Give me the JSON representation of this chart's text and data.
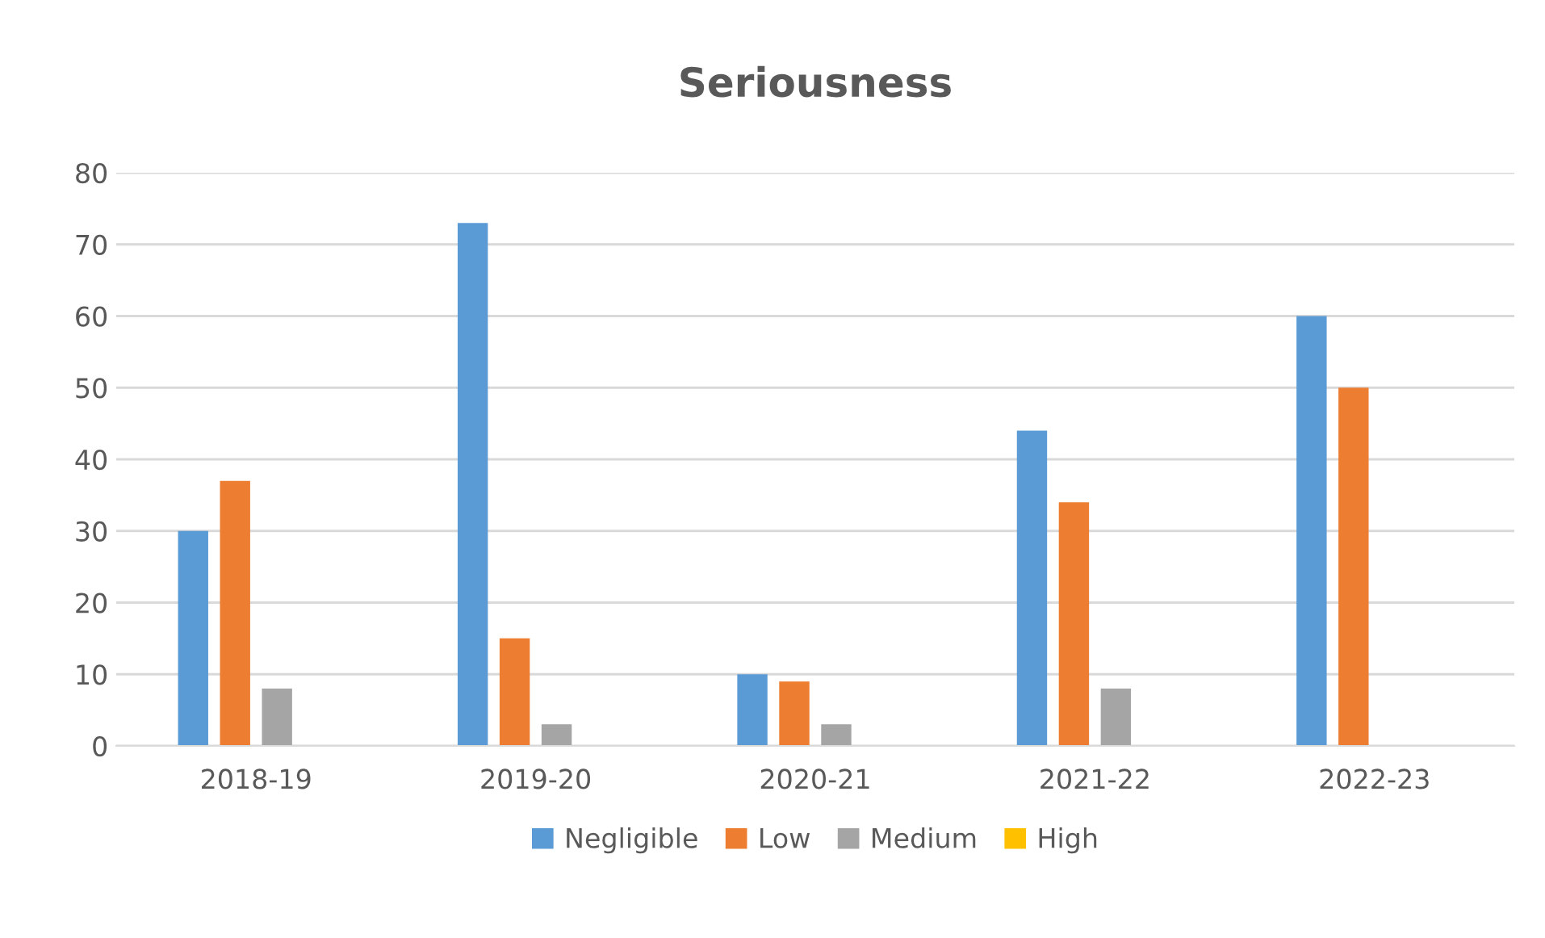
{
  "chart_data": {
    "type": "bar",
    "title": "Seriousness",
    "categories": [
      "2018-19",
      "2019-20",
      "2020-21",
      "2021-22",
      "2022-23"
    ],
    "series": [
      {
        "name": "Negligible",
        "color": "#5b9bd5",
        "values": [
          30,
          73,
          10,
          44,
          60
        ]
      },
      {
        "name": "Low",
        "color": "#ed7d31",
        "values": [
          37,
          15,
          9,
          34,
          50
        ]
      },
      {
        "name": "Medium",
        "color": "#a5a5a5",
        "values": [
          8,
          3,
          3,
          8,
          0
        ]
      },
      {
        "name": "High",
        "color": "#ffc000",
        "values": [
          0,
          0,
          0,
          0,
          0
        ]
      }
    ],
    "ylim": [
      0,
      80
    ],
    "yticks": [
      0,
      10,
      20,
      30,
      40,
      50,
      60,
      70,
      80
    ],
    "grid": "y",
    "legend": "bottom"
  }
}
